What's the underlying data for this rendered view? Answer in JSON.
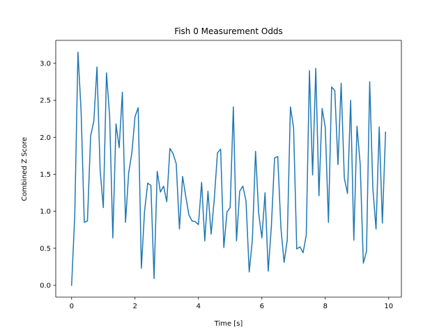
{
  "chart_data": {
    "type": "line",
    "title": "Fish 0 Measurement Odds",
    "xlabel": "Time [s]",
    "ylabel": "Combined Z Score",
    "xlim": [
      -0.5,
      10.4
    ],
    "ylim": [
      -0.16,
      3.31
    ],
    "xticks": [
      0,
      2,
      4,
      6,
      8,
      10
    ],
    "yticks": [
      0.0,
      0.5,
      1.0,
      1.5,
      2.0,
      2.5,
      3.0
    ],
    "xtick_labels": [
      "0",
      "2",
      "4",
      "6",
      "8",
      "10"
    ],
    "ytick_labels": [
      "0.0",
      "0.5",
      "1.0",
      "1.5",
      "2.0",
      "2.5",
      "3.0"
    ],
    "grid": false,
    "line_color": "#1f77b4",
    "series": [
      {
        "x": [
          0.0,
          0.1,
          0.2,
          0.3,
          0.4,
          0.5,
          0.6,
          0.7,
          0.8,
          0.9,
          1.0,
          1.1,
          1.2,
          1.3,
          1.4,
          1.5,
          1.6,
          1.7,
          1.8,
          1.9,
          2.0,
          2.1,
          2.2,
          2.3,
          2.4,
          2.5,
          2.6,
          2.7,
          2.8,
          2.9,
          3.0,
          3.1,
          3.2,
          3.3,
          3.4,
          3.5,
          3.6,
          3.7,
          3.8,
          3.9,
          4.0,
          4.1,
          4.2,
          4.3,
          4.4,
          4.5,
          4.6,
          4.7,
          4.8,
          4.9,
          5.0,
          5.1,
          5.2,
          5.3,
          5.4,
          5.5,
          5.6,
          5.7,
          5.8,
          5.9,
          6.0,
          6.1,
          6.2,
          6.3,
          6.4,
          6.5,
          6.6,
          6.7,
          6.8,
          6.9,
          7.0,
          7.1,
          7.2,
          7.3,
          7.4,
          7.5,
          7.6,
          7.7,
          7.8,
          7.9,
          8.0,
          8.1,
          8.2,
          8.3,
          8.4,
          8.5,
          8.6,
          8.7,
          8.8,
          8.9,
          9.0,
          9.1,
          9.2,
          9.3,
          9.4,
          9.5,
          9.6,
          9.7,
          9.8,
          9.9
        ],
        "values": [
          0.0,
          0.95,
          3.15,
          2.35,
          0.85,
          0.87,
          2.02,
          2.22,
          2.95,
          1.55,
          1.05,
          2.87,
          2.28,
          0.64,
          2.18,
          1.86,
          2.61,
          0.85,
          1.52,
          1.79,
          2.28,
          2.4,
          0.23,
          1.0,
          1.38,
          1.35,
          0.09,
          1.54,
          1.26,
          1.34,
          1.13,
          1.85,
          1.78,
          1.64,
          0.76,
          1.47,
          1.2,
          0.95,
          0.87,
          0.86,
          0.82,
          1.39,
          0.6,
          1.27,
          0.69,
          1.17,
          1.79,
          1.84,
          0.51,
          0.99,
          1.05,
          2.41,
          0.6,
          1.27,
          1.34,
          1.14,
          0.18,
          0.61,
          1.81,
          0.97,
          0.64,
          1.25,
          0.19,
          0.8,
          1.72,
          1.74,
          0.78,
          0.31,
          0.61,
          2.41,
          2.13,
          0.49,
          0.52,
          0.44,
          0.68,
          2.9,
          1.49,
          2.93,
          1.21,
          2.39,
          2.13,
          0.85,
          2.68,
          2.63,
          1.63,
          2.73,
          1.45,
          1.24,
          2.5,
          0.61,
          2.15,
          1.64,
          0.3,
          0.46,
          2.75,
          1.31,
          0.76,
          2.14,
          0.84,
          2.07
        ]
      }
    ]
  }
}
